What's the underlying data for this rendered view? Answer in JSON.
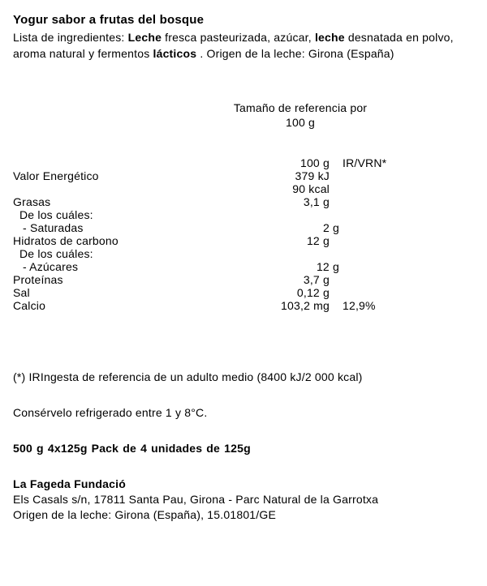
{
  "title": "Yogur sabor a frutas del bosque",
  "ingredients": {
    "label": "Lista de ingredientes: ",
    "part1_bold": "Leche",
    "part2": " fresca pasteurizada, azúcar, ",
    "part3_bold": "leche",
    "part4": " desnatada en polvo, aroma natural y fermentos ",
    "part5_bold": "lácticos",
    "part6": " . Origen de la leche: Girona (España)"
  },
  "serving": {
    "line1": "Tamaño de referencia por",
    "line2": "100 g"
  },
  "nutrition": {
    "header": {
      "col1": "100 g",
      "col2": "IR/VRN*"
    },
    "rows": [
      {
        "label": "Valor  Energético",
        "value": "379 kJ",
        "indent": 0
      },
      {
        "label": "",
        "value": "90 kcal",
        "indent": 0
      },
      {
        "label": "Grasas",
        "value": "3,1 g",
        "indent": 0
      },
      {
        "label": "De los cuáles:",
        "value": "",
        "indent": 1
      },
      {
        "label": "- Saturadas",
        "value": "2 g",
        "indent": 2
      },
      {
        "label": "Hidratos  de  carbono",
        "value": "12 g",
        "indent": 0
      },
      {
        "label": "De los cuáles:",
        "value": "",
        "indent": 1
      },
      {
        "label": "- Azúcares",
        "value": "12 g",
        "indent": 2
      },
      {
        "label": "Proteínas",
        "value": "3,7 g",
        "indent": 0
      },
      {
        "label": "Sal",
        "value": "0,12 g",
        "indent": 0
      },
      {
        "label": "Calcio",
        "value": "103,2 mg",
        "rv": "12,9%",
        "indent": 0
      }
    ]
  },
  "footnote": "(*) IRIngesta de referencia de un adulto medio (8400 kJ/2 000 kcal)",
  "storage": "Consérvelo refrigerado entre 1 y 8°C.",
  "pack": "500 g  4x125g   Pack de 4 unidades de 125g",
  "company": "La Fageda Fundació",
  "address1": "Els Casals s/n, 17811 Santa Pau, Girona - Parc Natural de la Garrotxa",
  "address2": "Origen de la leche: Girona (España),  15.01801/GE"
}
